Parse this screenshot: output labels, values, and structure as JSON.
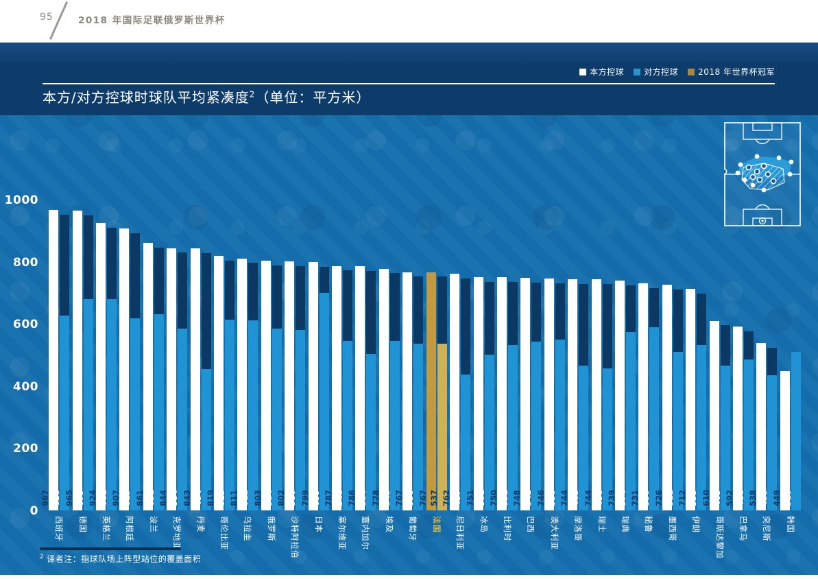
{
  "page": {
    "number": "95",
    "header_title": "2018 年国际足联俄罗斯世界杯"
  },
  "chart": {
    "title_main": "本方/对方控球时球队平均紧凑度",
    "title_sup": "2",
    "title_unit": "（单位：平方米）"
  },
  "legend": {
    "items": [
      {
        "label": "本方控球",
        "color": "#ffffff"
      },
      {
        "label": "对方控球",
        "color": "#2d94d2"
      },
      {
        "label": "2018 年世界杯冠军",
        "color": "#a8893c"
      }
    ]
  },
  "footnote": {
    "sup": "2",
    "text": "译者注：指球队场上阵型站位的覆盖面积"
  },
  "colors": {
    "own_bar": "#ffffff",
    "opp_bar": "#2093d4",
    "champion_own_bar": "#c49a3e",
    "champion_opp_bar": "#cfb257",
    "shadow_bar": "#0c3963",
    "panel_dark": "#0d3c6b",
    "panel_mid": "#146fad"
  },
  "chart_data": {
    "type": "bar",
    "title": "本方/对方控球时球队平均紧凑度（单位：平方米）",
    "xlabel": "",
    "ylabel": "",
    "ylim": [
      0,
      1000
    ],
    "yticks": [
      0,
      200,
      400,
      600,
      800,
      1000
    ],
    "grid": false,
    "legend_position": "top-right",
    "categories": [
      "西班牙",
      "德国",
      "英格兰",
      "阿根廷",
      "波兰",
      "克罗地亚",
      "丹麦",
      "哥伦比亚",
      "乌拉圭",
      "俄罗斯",
      "沙特阿拉伯",
      "日本",
      "塞尔维亚",
      "塞内加尔",
      "埃及",
      "葡萄牙",
      "法国",
      "尼日利亚",
      "冰岛",
      "比利时",
      "巴西",
      "澳大利亚",
      "摩洛哥",
      "瑞士",
      "瑞典",
      "秘鲁",
      "墨西哥",
      "伊朗",
      "哥斯达黎加",
      "巴拿马",
      "突尼斯",
      "韩国"
    ],
    "series": [
      {
        "name": "本方控球",
        "values": [
          967,
          965,
          924,
          907,
          861,
          844,
          843,
          819,
          811,
          803,
          802,
          799,
          787,
          786,
          778,
          767,
          767,
          762,
          751,
          750,
          748,
          746,
          744,
          744,
          739,
          731,
          726,
          712,
          610,
          592,
          538,
          449
        ]
      },
      {
        "name": "对方控球",
        "values": [
          628,
          679,
          681,
          619,
          631,
          584,
          454,
          613,
          612,
          584,
          580,
          699,
          546,
          504,
          545,
          536,
          537,
          437,
          501,
          532,
          542,
          550,
          465,
          456,
          574,
          590,
          511,
          533,
          465,
          486,
          435,
          510
        ]
      }
    ],
    "highlight": {
      "index": 16,
      "category": "法国",
      "label": "2018 年世界杯冠军"
    }
  }
}
